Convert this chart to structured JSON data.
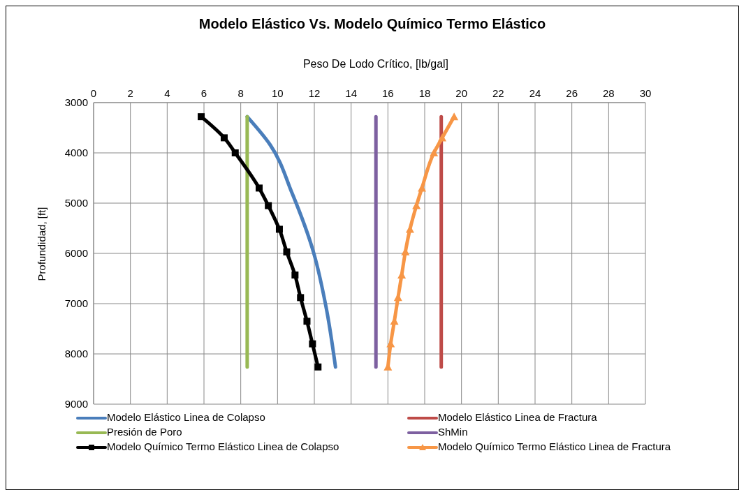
{
  "chart_data": {
    "type": "line",
    "title": "Modelo Elástico Vs. Modelo Químico  Termo Elástico",
    "xlabel": "Peso De Lodo Crítico, [lb/gal]",
    "ylabel": "Profundidad, [ft]",
    "xlim": [
      0,
      30
    ],
    "xticks": [
      0,
      2,
      4,
      6,
      8,
      10,
      12,
      14,
      16,
      18,
      20,
      22,
      24,
      26,
      28,
      30
    ],
    "ylim": [
      9000,
      3000
    ],
    "yticks": [
      3000,
      4000,
      5000,
      6000,
      7000,
      8000,
      9000
    ],
    "grid": true,
    "legend": "bottom",
    "series": [
      {
        "name": "Modelo Elástico Linea de Colapso",
        "color": "#4a7ebb",
        "marker": "none",
        "x": [
          8.35,
          9.6,
          10.8,
          11.95,
          12.65,
          13.15
        ],
        "values": [
          3280,
          3840,
          4810,
          5970,
          7090,
          8260
        ]
      },
      {
        "name": "Modelo Elástico Linea de Fractura",
        "color": "#be4b48",
        "marker": "none",
        "x": [
          18.9,
          18.9
        ],
        "values": [
          3280,
          8260
        ]
      },
      {
        "name": "Presión de Poro",
        "color": "#98b954",
        "marker": "none",
        "x": [
          8.35,
          8.35
        ],
        "values": [
          3280,
          8260
        ]
      },
      {
        "name": "ShMin",
        "color": "#7d60a0",
        "marker": "none",
        "x": [
          15.35,
          15.35
        ],
        "values": [
          3280,
          8260
        ]
      },
      {
        "name": "Modelo Químico Termo Elástico Linea de Colapso",
        "color": "#000000",
        "marker": "square",
        "x": [
          5.85,
          7.1,
          7.7,
          9.0,
          9.5,
          10.1,
          10.5,
          10.95,
          11.25,
          11.6,
          11.9,
          12.2
        ],
        "values": [
          3280,
          3700,
          4000,
          4700,
          5050,
          5520,
          5970,
          6430,
          6880,
          7350,
          7800,
          8260
        ]
      },
      {
        "name": "Modelo Químico Termo Elástico Linea de Fractura",
        "color": "#f79646",
        "marker": "triangle",
        "x": [
          19.6,
          18.95,
          18.5,
          17.85,
          17.55,
          17.2,
          16.95,
          16.75,
          16.55,
          16.35,
          16.15,
          16.0
        ],
        "values": [
          3280,
          3700,
          4000,
          4700,
          5050,
          5520,
          5970,
          6430,
          6880,
          7350,
          7800,
          8260
        ]
      }
    ]
  }
}
